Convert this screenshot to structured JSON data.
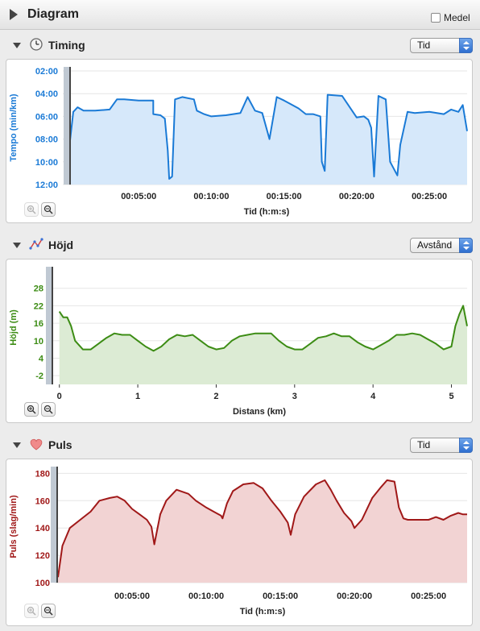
{
  "header": {
    "title": "Diagram",
    "medel_label": "Medel",
    "medel_checked": false
  },
  "sections": [
    {
      "title": "Timing",
      "icon": "clock-icon",
      "select_value": "Tid",
      "color": "#1a7ad6",
      "chart_data": {
        "type": "area",
        "ylabel": "Tempo (min/km)",
        "xlabel": "Tid (h:m:s)",
        "y_ticks": [
          "02:00",
          "04:00",
          "06:00",
          "08:00",
          "10:00",
          "12:00"
        ],
        "x_ticks": [
          "00:05:00",
          "00:10:00",
          "00:15:00",
          "00:20:00",
          "00:25:00"
        ],
        "ylim_minutes": [
          2,
          12
        ],
        "xlim_minutes": [
          0,
          27.6
        ],
        "y_inverted": true,
        "x": [
          0,
          0.2,
          0.5,
          0.8,
          1.2,
          2,
          3,
          3.5,
          4,
          5,
          6,
          6,
          6.5,
          6.8,
          7,
          7.1,
          7.3,
          7.5,
          8,
          8.8,
          9,
          9.5,
          10,
          11,
          12,
          12.5,
          13,
          13.5,
          14,
          14.5,
          15,
          16,
          16.5,
          17,
          17.5,
          17.6,
          17.8,
          18,
          19,
          20,
          20.5,
          20.8,
          21,
          21.2,
          21.5,
          22,
          22.3,
          22.8,
          23,
          23.5,
          24,
          25,
          26,
          26.5,
          27,
          27.3,
          27.6
        ],
        "y": [
          10.3,
          9,
          5.6,
          5.2,
          5.5,
          5.5,
          5.4,
          4.5,
          4.5,
          4.6,
          4.6,
          5.8,
          5.9,
          6.2,
          9,
          11.5,
          11.3,
          4.5,
          4.3,
          4.5,
          5.5,
          5.8,
          6,
          5.9,
          5.7,
          4.3,
          5.5,
          5.7,
          8,
          4.3,
          4.6,
          5.3,
          5.8,
          5.8,
          6,
          10,
          10.8,
          4.1,
          4.2,
          6.1,
          6.0,
          6.3,
          7,
          11.3,
          4.2,
          4.5,
          10,
          11.2,
          8.5,
          5.6,
          5.7,
          5.6,
          5.8,
          5.4,
          5.6,
          5.0,
          7.3
        ]
      },
      "zoom_in": "zoom-in",
      "zoom_out": "zoom-out"
    },
    {
      "title": "Höjd",
      "icon": "route-icon",
      "select_value": "Avstånd",
      "color": "#3c8c14",
      "chart_data": {
        "type": "area",
        "ylabel": "Höjd (m)",
        "xlabel": "Distans (km)",
        "y_ticks": [
          "28",
          "22",
          "16",
          "10",
          "4",
          "-2"
        ],
        "x_ticks": [
          "0",
          "1",
          "2",
          "3",
          "4",
          "5"
        ],
        "ylim": [
          -5,
          34
        ],
        "xlim": [
          -0.1,
          5.2
        ],
        "x": [
          0,
          0.05,
          0.1,
          0.15,
          0.2,
          0.3,
          0.4,
          0.5,
          0.6,
          0.7,
          0.8,
          0.9,
          1.0,
          1.1,
          1.2,
          1.3,
          1.4,
          1.5,
          1.6,
          1.7,
          1.8,
          1.9,
          2.0,
          2.1,
          2.2,
          2.3,
          2.4,
          2.5,
          2.6,
          2.7,
          2.8,
          2.9,
          3.0,
          3.1,
          3.2,
          3.3,
          3.4,
          3.5,
          3.6,
          3.7,
          3.8,
          3.9,
          4.0,
          4.1,
          4.2,
          4.3,
          4.4,
          4.5,
          4.6,
          4.7,
          4.8,
          4.9,
          5.0,
          5.05,
          5.1,
          5.15,
          5.2
        ],
        "y": [
          20,
          18,
          18,
          15,
          10,
          7,
          7,
          9,
          11,
          12.5,
          12,
          12,
          10,
          8,
          6.5,
          8,
          10.5,
          12,
          11.5,
          12,
          10,
          8,
          7,
          7.5,
          10,
          11.5,
          12,
          12.5,
          12.5,
          12.5,
          10,
          8,
          7,
          7,
          9,
          11,
          11.5,
          12.5,
          11.5,
          11.5,
          9.5,
          8,
          7,
          8.5,
          10,
          12,
          12,
          12.5,
          12,
          10.5,
          9,
          7,
          8,
          15,
          19,
          22,
          15
        ]
      },
      "zoom_in": "zoom-in",
      "zoom_out": "zoom-out"
    },
    {
      "title": "Puls",
      "icon": "heart-icon",
      "select_value": "Tid",
      "color": "#a01818",
      "chart_data": {
        "type": "area",
        "ylabel": "Puls (slag/min)",
        "xlabel": "Tid (h:m:s)",
        "y_ticks": [
          "180",
          "160",
          "140",
          "120",
          "100"
        ],
        "x_ticks": [
          "00:05:00",
          "00:10:00",
          "00:15:00",
          "00:20:00",
          "00:25:00"
        ],
        "ylim": [
          100,
          182
        ],
        "xlim_minutes": [
          0,
          27.6
        ],
        "x": [
          0,
          0.3,
          0.8,
          1.5,
          2.2,
          2.8,
          3.5,
          4,
          4.5,
          5,
          5.5,
          6,
          6.3,
          6.5,
          6.9,
          7.3,
          8,
          8.8,
          9.3,
          10,
          10.5,
          11,
          11.1,
          11.4,
          11.8,
          12.5,
          13.2,
          13.8,
          14.4,
          15,
          15.5,
          15.7,
          16,
          16.6,
          17.4,
          18,
          18.4,
          18.8,
          19.3,
          19.8,
          20,
          20.5,
          21.2,
          21.8,
          22.2,
          22.7,
          23,
          23.3,
          23.6,
          24.2,
          25,
          25.5,
          26,
          26.5,
          27,
          27.3,
          27.6
        ],
        "y": [
          104,
          127,
          140,
          146,
          152,
          160,
          162,
          163,
          160,
          154,
          150,
          146,
          141,
          128,
          150,
          160,
          168,
          165,
          160,
          155,
          152,
          149,
          147,
          158,
          167,
          172,
          173,
          169,
          160,
          152,
          144,
          135,
          150,
          163,
          172,
          175,
          168,
          160,
          151,
          145,
          140,
          146,
          162,
          170,
          175,
          174,
          155,
          147,
          146,
          146,
          146,
          148,
          146,
          149,
          151,
          150,
          150
        ]
      },
      "zoom_in": "zoom-in",
      "zoom_out": "zoom-out"
    }
  ]
}
